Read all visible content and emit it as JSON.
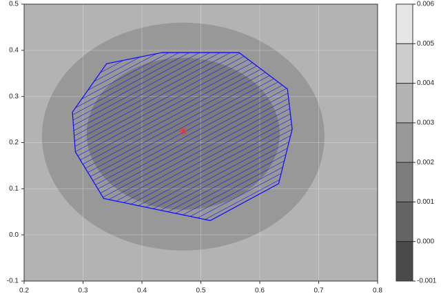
{
  "chart_data": {
    "type": "contour",
    "xlim": [
      0.2,
      0.8
    ],
    "ylim": [
      -0.1,
      0.5
    ],
    "xticks": [
      0.2,
      0.3,
      0.4,
      0.5,
      0.6,
      0.7,
      0.8
    ],
    "yticks": [
      -0.1,
      {
        "value": 0,
        "label": "0.0"
      },
      0.1,
      0.2,
      0.3,
      0.4,
      0.5
    ],
    "grid": true,
    "levels": [
      -0.001,
      {
        "value": 0,
        "label": "0.000"
      },
      0.001,
      0.002,
      0.003,
      0.004,
      0.005,
      0.006
    ],
    "level_colors": [
      "#4a4a4a",
      "#646464",
      "#7d7d7d",
      "#989898",
      "#b3b3b3",
      "#cdcdcd",
      "#e6e6e6"
    ],
    "polygon": {
      "x": [
        0.34,
        0.434,
        0.565,
        0.647,
        0.655,
        0.632,
        0.516,
        0.335,
        0.287,
        0.282
      ],
      "y": [
        0.371,
        0.395,
        0.395,
        0.316,
        0.229,
        0.111,
        0.031,
        0.079,
        0.18,
        0.266
      ],
      "color": "#1010ff"
    },
    "center": {
      "x": 0.47,
      "y": 0.225,
      "color": "#ff3030"
    }
  }
}
